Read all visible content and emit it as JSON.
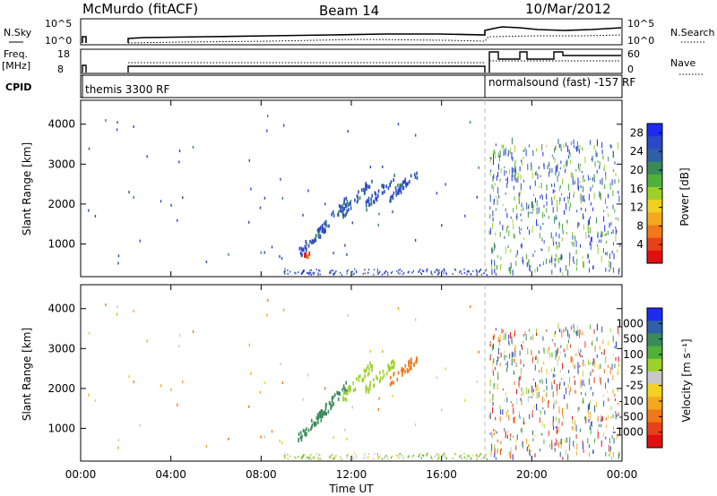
{
  "header": {
    "station": "McMurdo (fitACF)",
    "beam": "Beam 14",
    "date": "10/Mar/2012"
  },
  "top_panels": {
    "nsky_label": "N.Sky",
    "nsky_ticks": [
      "10^5",
      "10^0"
    ],
    "nsearch_label": "N.Search",
    "nsearch_ticks": [
      "10^5",
      "10^0"
    ],
    "freq_label": "Freq.",
    "freq_unit": "[MHz]",
    "freq_ticks": [
      "18",
      "8"
    ],
    "nave_label": "Nave",
    "nave_ticks": [
      "60",
      "0"
    ],
    "cpid_label": "CPID",
    "cpid_segments": [
      "themis 3300 RF",
      "normalsound (fast) -157 RF"
    ]
  },
  "colors": {
    "power_scale": [
      "#1e2bf0",
      "#2a49c8",
      "#2f5fa6",
      "#3a8a5a",
      "#4fb03a",
      "#9bd22a",
      "#f0d020",
      "#f4a820",
      "#f07818",
      "#e84018",
      "#e01010"
    ],
    "velocity_scale": [
      "#1e2bf0",
      "#2f5fa6",
      "#3a8a5a",
      "#4fb03a",
      "#9bd22a",
      "#c8c8c8",
      "#f4d020",
      "#f4a820",
      "#f07818",
      "#e84018",
      "#e01010"
    ]
  },
  "chart_data": [
    {
      "type": "heatmap",
      "title": "",
      "xlabel": "Time UT",
      "ylabel": "Slant Range [km]",
      "x_ticks": [
        "00:00",
        "04:00",
        "08:00",
        "12:00",
        "16:00",
        "20:00",
        "00:00"
      ],
      "y_ticks": [
        1000,
        2000,
        3000,
        4000
      ],
      "xlim_hours": [
        0,
        24
      ],
      "ylim_km": [
        180,
        4600
      ],
      "colorbar_label": "Power [dB]",
      "colorbar_ticks": [
        4,
        8,
        12,
        16,
        20,
        24,
        28
      ],
      "colorbar_range": [
        0,
        30
      ]
    },
    {
      "type": "heatmap",
      "title": "",
      "xlabel": "Time UT",
      "ylabel": "Slant Range [km]",
      "x_ticks": [
        "00:00",
        "04:00",
        "08:00",
        "12:00",
        "16:00",
        "20:00",
        "00:00"
      ],
      "y_ticks": [
        1000,
        2000,
        3000,
        4000
      ],
      "xlim_hours": [
        0,
        24
      ],
      "ylim_km": [
        180,
        4600
      ],
      "colorbar_label": "Velocity [m s⁻¹]",
      "colorbar_ticks": [
        "1000",
        "500",
        "100",
        "25",
        "-25",
        "-100",
        "-500",
        "-1000"
      ]
    }
  ]
}
